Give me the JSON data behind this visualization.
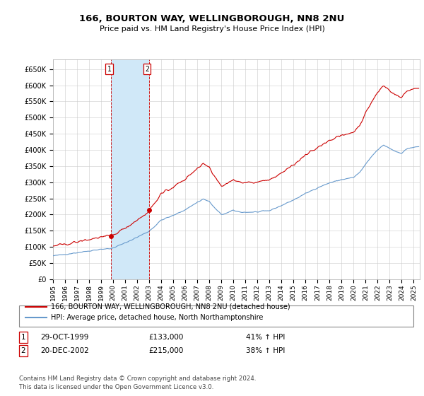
{
  "title": "166, BOURTON WAY, WELLINGBOROUGH, NN8 2NU",
  "subtitle": "Price paid vs. HM Land Registry's House Price Index (HPI)",
  "legend_line1": "166, BOURTON WAY, WELLINGBOROUGH, NN8 2NU (detached house)",
  "legend_line2": "HPI: Average price, detached house, North Northamptonshire",
  "sale1_label": "1",
  "sale1_date": "29-OCT-1999",
  "sale1_price": "£133,000",
  "sale1_hpi": "41% ↑ HPI",
  "sale1_year": 1999.83,
  "sale1_value": 133000,
  "sale2_label": "2",
  "sale2_date": "20-DEC-2002",
  "sale2_price": "£215,000",
  "sale2_hpi": "38% ↑ HPI",
  "sale2_year": 2002.97,
  "sale2_value": 215000,
  "footer": "Contains HM Land Registry data © Crown copyright and database right 2024.\nThis data is licensed under the Open Government Licence v3.0.",
  "ylim": [
    0,
    680000
  ],
  "xlim_start": 1995.0,
  "xlim_end": 2025.5,
  "red_color": "#cc0000",
  "blue_color": "#6699cc",
  "shade_color": "#d0e8f8",
  "grid_color": "#cccccc",
  "background_color": "#ffffff"
}
